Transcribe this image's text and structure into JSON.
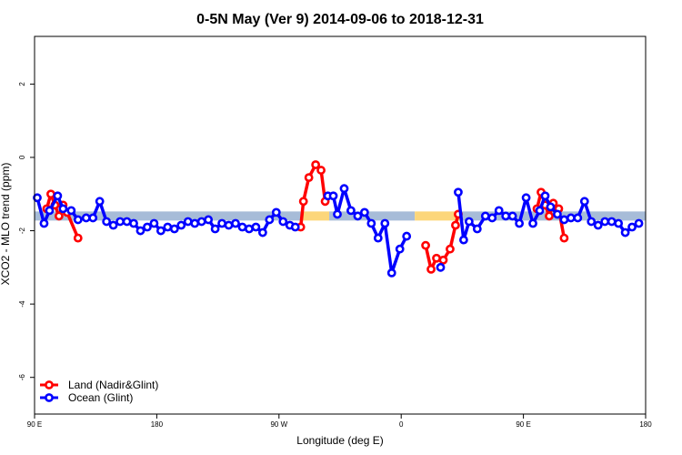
{
  "chart_data": {
    "type": "line",
    "title": "0-5N May (Ver 9)   2014-09-06 to 2018-12-31",
    "xlabel": "Longitude (deg E)",
    "ylabel": "XCO2 - MLO trend (ppm)",
    "x_ticks": [
      {
        "value": 90,
        "label": "90 E"
      },
      {
        "value": 180,
        "label": "180"
      },
      {
        "value": 270,
        "label": "90 W"
      },
      {
        "value": 360,
        "label": "0"
      },
      {
        "value": 450,
        "label": "90 E"
      },
      {
        "value": 540,
        "label": "180"
      }
    ],
    "y_ticks": [
      {
        "value": 2,
        "label": "2"
      },
      {
        "value": 0,
        "label": "0"
      },
      {
        "value": -2,
        "label": "-2"
      },
      {
        "value": -4,
        "label": "-4"
      },
      {
        "value": -6,
        "label": "-6"
      }
    ],
    "xlim": [
      90,
      540
    ],
    "ylim": [
      -7,
      3.3
    ],
    "grid": false,
    "legend_position": "bottom-left",
    "reference_band": {
      "y": -1.6,
      "segments": [
        {
          "from": 90,
          "to": 286,
          "color": "#a7bcd8"
        },
        {
          "from": 286,
          "to": 307,
          "color": "#fcd67a"
        },
        {
          "from": 307,
          "to": 370,
          "color": "#a7bcd8"
        },
        {
          "from": 370,
          "to": 404,
          "color": "#fcd67a"
        },
        {
          "from": 404,
          "to": 540,
          "color": "#a7bcd8"
        }
      ]
    },
    "series": [
      {
        "name": "Land (Nadir&Glint)",
        "color": "#ff0000",
        "segments": [
          [
            [
              99,
              -1.4
            ],
            [
              102,
              -1.0
            ],
            [
              105,
              -1.3
            ],
            [
              108,
              -1.6
            ],
            [
              111,
              -1.3
            ],
            [
              114,
              -1.5
            ],
            [
              122,
              -2.2
            ]
          ],
          [
            [
              286,
              -1.9
            ],
            [
              288,
              -1.2
            ],
            [
              292,
              -0.55
            ],
            [
              297,
              -0.2
            ],
            [
              301,
              -0.35
            ],
            [
              304,
              -1.2
            ]
          ],
          [
            [
              378,
              -2.4
            ],
            [
              382,
              -3.05
            ],
            [
              386,
              -2.75
            ],
            [
              391,
              -2.8
            ],
            [
              396,
              -2.5
            ],
            [
              400,
              -1.85
            ],
            [
              402,
              -1.55
            ]
          ],
          [
            [
              460,
              -1.4
            ],
            [
              463,
              -0.95
            ],
            [
              466,
              -1.3
            ],
            [
              469,
              -1.6
            ],
            [
              472,
              -1.25
            ],
            [
              476,
              -1.4
            ],
            [
              480,
              -2.2
            ]
          ]
        ]
      },
      {
        "name": "Ocean (Glint)",
        "color": "#0000ff",
        "segments": [
          [
            [
              92,
              -1.1
            ],
            [
              97,
              -1.8
            ],
            [
              101,
              -1.45
            ],
            [
              107,
              -1.05
            ],
            [
              111,
              -1.4
            ],
            [
              117,
              -1.45
            ],
            [
              122,
              -1.7
            ],
            [
              128,
              -1.65
            ],
            [
              133,
              -1.65
            ],
            [
              138,
              -1.2
            ],
            [
              143,
              -1.75
            ],
            [
              148,
              -1.85
            ],
            [
              153,
              -1.75
            ],
            [
              158,
              -1.75
            ],
            [
              163,
              -1.8
            ],
            [
              168,
              -2.0
            ],
            [
              173,
              -1.9
            ],
            [
              178,
              -1.8
            ],
            [
              183,
              -2.0
            ],
            [
              188,
              -1.9
            ],
            [
              193,
              -1.95
            ],
            [
              198,
              -1.85
            ],
            [
              203,
              -1.75
            ],
            [
              208,
              -1.8
            ],
            [
              213,
              -1.75
            ],
            [
              218,
              -1.7
            ],
            [
              223,
              -1.95
            ],
            [
              228,
              -1.8
            ],
            [
              233,
              -1.85
            ],
            [
              238,
              -1.8
            ],
            [
              243,
              -1.9
            ],
            [
              248,
              -1.95
            ],
            [
              253,
              -1.9
            ],
            [
              258,
              -2.05
            ],
            [
              263,
              -1.7
            ],
            [
              268,
              -1.5
            ],
            [
              273,
              -1.75
            ],
            [
              278,
              -1.85
            ],
            [
              282,
              -1.9
            ]
          ],
          [
            [
              306,
              -1.05
            ],
            [
              310,
              -1.05
            ],
            [
              313,
              -1.55
            ],
            [
              318,
              -0.85
            ],
            [
              323,
              -1.45
            ],
            [
              328,
              -1.6
            ],
            [
              333,
              -1.5
            ],
            [
              338,
              -1.8
            ],
            [
              343,
              -2.2
            ],
            [
              348,
              -1.8
            ],
            [
              353,
              -3.15
            ],
            [
              359,
              -2.5
            ],
            [
              364,
              -2.15
            ]
          ],
          [
            [
              389,
              -3.0
            ]
          ],
          [
            [
              402,
              -0.95
            ],
            [
              406,
              -2.25
            ],
            [
              410,
              -1.75
            ],
            [
              416,
              -1.95
            ],
            [
              422,
              -1.6
            ],
            [
              427,
              -1.65
            ],
            [
              432,
              -1.45
            ],
            [
              437,
              -1.6
            ],
            [
              442,
              -1.6
            ],
            [
              447,
              -1.8
            ],
            [
              452,
              -1.1
            ],
            [
              457,
              -1.8
            ],
            [
              462,
              -1.45
            ],
            [
              466,
              -1.05
            ],
            [
              470,
              -1.35
            ],
            [
              475,
              -1.55
            ],
            [
              480,
              -1.7
            ],
            [
              485,
              -1.65
            ],
            [
              490,
              -1.65
            ],
            [
              495,
              -1.2
            ],
            [
              500,
              -1.75
            ],
            [
              505,
              -1.85
            ],
            [
              510,
              -1.75
            ],
            [
              515,
              -1.75
            ],
            [
              520,
              -1.8
            ],
            [
              525,
              -2.05
            ],
            [
              530,
              -1.9
            ],
            [
              535,
              -1.8
            ]
          ]
        ]
      }
    ]
  }
}
